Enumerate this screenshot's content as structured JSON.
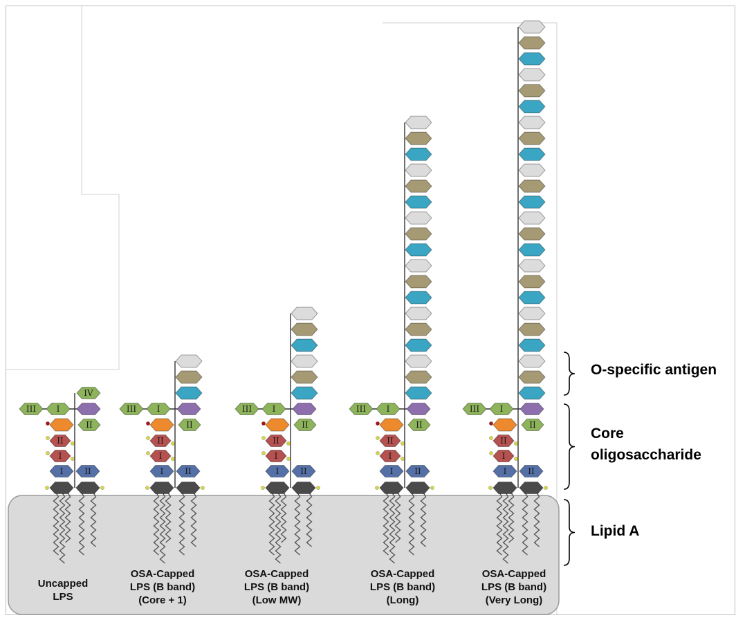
{
  "regions": [
    {
      "id": "osa",
      "lines": [
        "O-specific antigen"
      ]
    },
    {
      "id": "core",
      "lines": [
        "Core",
        "oligosaccharide"
      ]
    },
    {
      "id": "lipid",
      "lines": [
        "Lipid A"
      ]
    }
  ],
  "core_numerals": {
    "r1": "I",
    "r2": "II",
    "r3": "III",
    "r4": "IV"
  },
  "columns": [
    {
      "id": "uncapped",
      "label_lines": [
        "Uncapped",
        "LPS"
      ],
      "osa_units": 0,
      "cap": "IV"
    },
    {
      "id": "core-plus-1",
      "label_lines": [
        "OSA-Capped",
        "LPS (B band)",
        "(Core + 1)"
      ],
      "osa_units": 3,
      "cap": ""
    },
    {
      "id": "low-mw",
      "label_lines": [
        "OSA-Capped",
        "LPS (B band)",
        "(Low MW)"
      ],
      "osa_units": 6,
      "cap": ""
    },
    {
      "id": "long",
      "label_lines": [
        "OSA-Capped",
        "LPS (B band)",
        "(Long)"
      ],
      "osa_units": 18,
      "cap": ""
    },
    {
      "id": "very-long",
      "label_lines": [
        "OSA-Capped",
        "LPS (B band)",
        "(Very Long)"
      ],
      "osa_units": 24,
      "cap": ""
    }
  ],
  "colors": {
    "green": "#8db35b",
    "purple": "#8e6fae",
    "orange": "#ee8a2e",
    "red": "#b5514f",
    "blue": "#5470a6",
    "dark": "#4a4a4a",
    "teal": "#3aa6c3",
    "tan": "#a59a74",
    "white": "#dcdcdc",
    "membrane": "#dadada",
    "phosphate": "#d8d64a"
  }
}
